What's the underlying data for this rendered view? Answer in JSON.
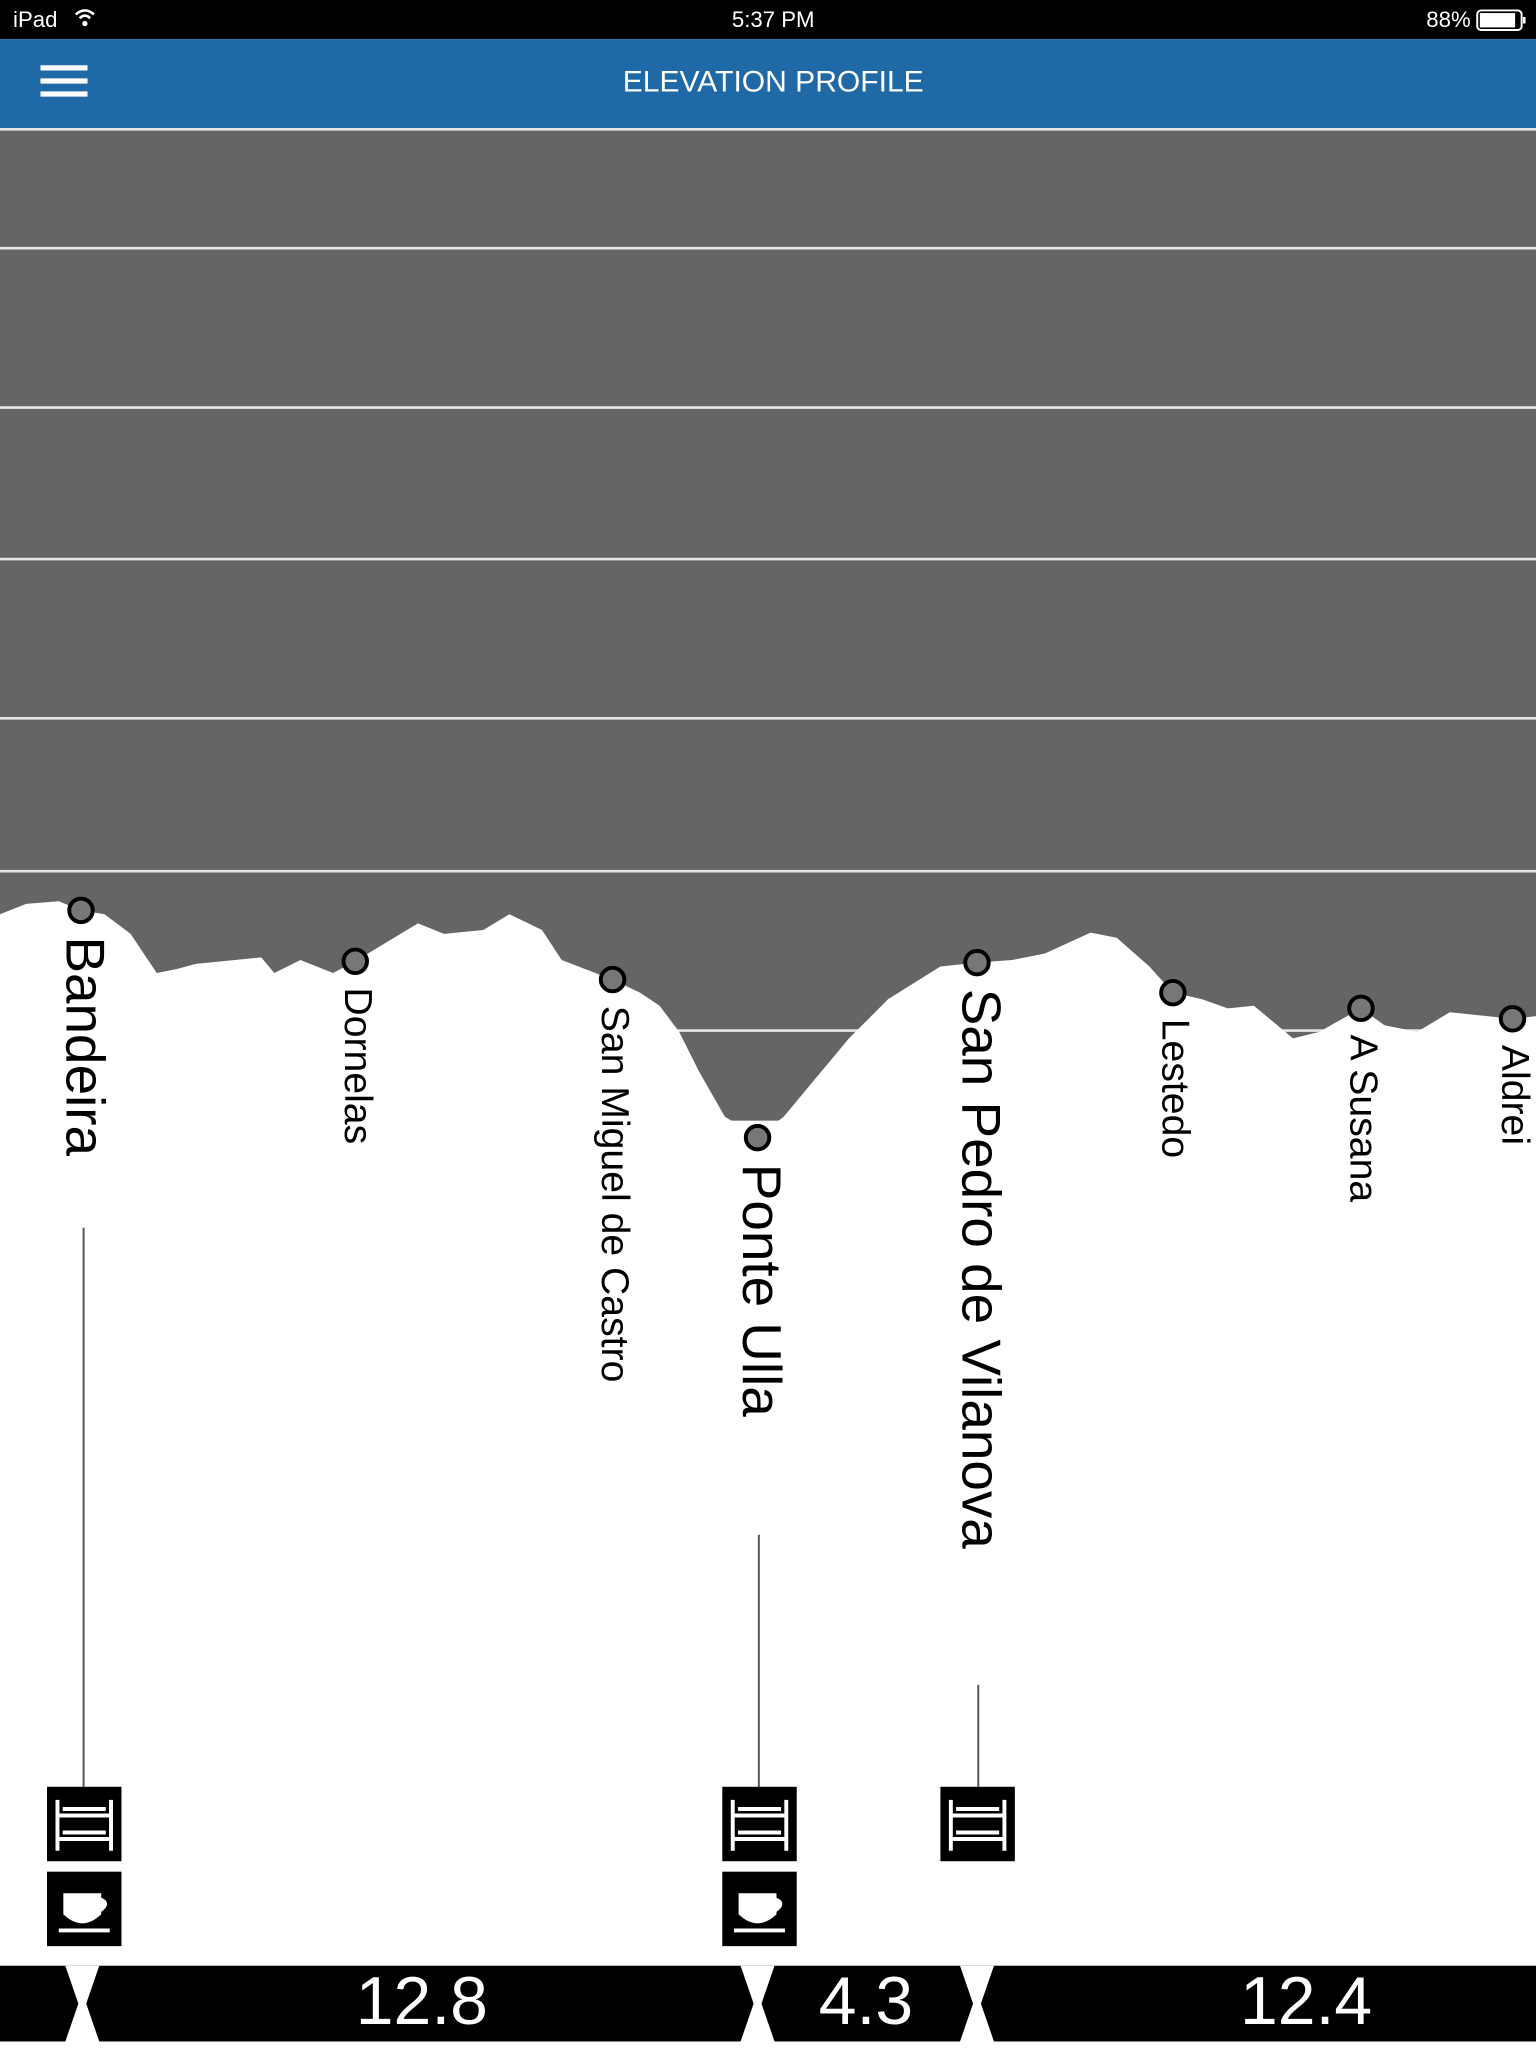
{
  "status_bar": {
    "device": "iPad",
    "time": "5:37 PM",
    "battery": "88%"
  },
  "header": {
    "title": "ELEVATION PROFILE"
  },
  "places": [
    "Bandeira",
    "Dornelas",
    "San Miguel de Castro",
    "Ponte Ulla",
    "San Pedro de Vilanova",
    "Lestedo",
    "A Susana",
    "Aldrei"
  ],
  "distances": [
    12.8,
    4.3,
    12.4
  ]
}
